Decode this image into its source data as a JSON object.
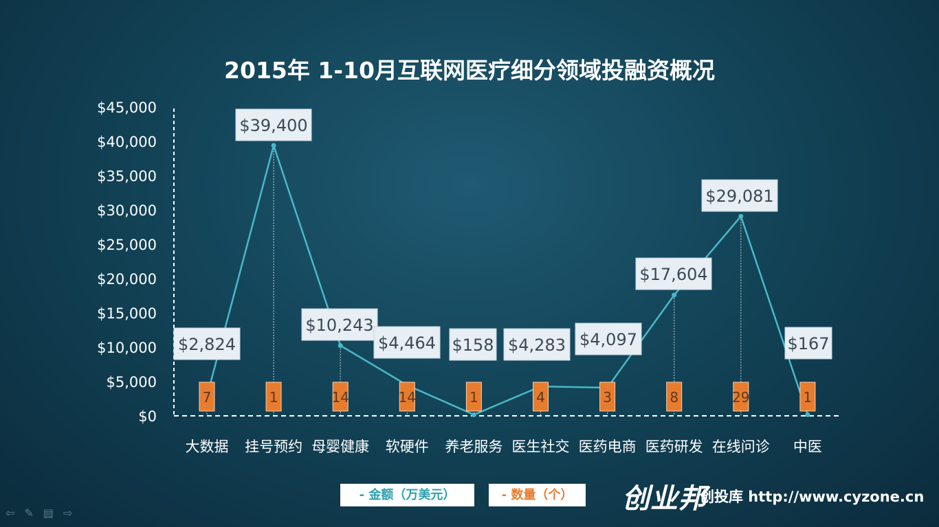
{
  "chart_data": {
    "type": "line",
    "title": "2015年 1-10月互联网医疗细分领域投融资概况",
    "categories": [
      "大数据",
      "挂号预约",
      "母婴健康",
      "软硬件",
      "养老服务",
      "医生社交",
      "医药电商",
      "医药研发",
      "在线问诊",
      "中医"
    ],
    "series": [
      {
        "name": "金额（万美元）",
        "values": [
          2824,
          39400,
          10243,
          4464,
          158,
          4283,
          4097,
          17604,
          29081,
          167
        ],
        "labels": [
          "$2,824",
          "$39,400",
          "$10,243",
          "$4,464",
          "$158",
          "$4,283",
          "$4,097",
          "$17,604",
          "$29,081",
          "$167"
        ],
        "color": "#4ab8c8"
      },
      {
        "name": "数量（个）",
        "values": [
          7,
          1,
          14,
          14,
          1,
          4,
          3,
          8,
          29,
          1
        ],
        "color": "#e87c2e"
      }
    ],
    "ylim": [
      0,
      45000
    ],
    "yticks": [
      "$0",
      "$5,000",
      "$10,000",
      "$15,000",
      "$20,000",
      "$25,000",
      "$30,000",
      "$35,000",
      "$40,000",
      "$45,000"
    ],
    "legend": "bottom",
    "grid": false
  },
  "legend": {
    "amount": "- 金额（万美元）",
    "count": "- 数量（个）"
  },
  "logo_text": "创业邦",
  "brand_text": "创投库 http://www.cyzone.cn",
  "nav_icons": [
    "back-arrow-icon",
    "pen-icon",
    "menu-icon",
    "forward-arrow-icon"
  ]
}
